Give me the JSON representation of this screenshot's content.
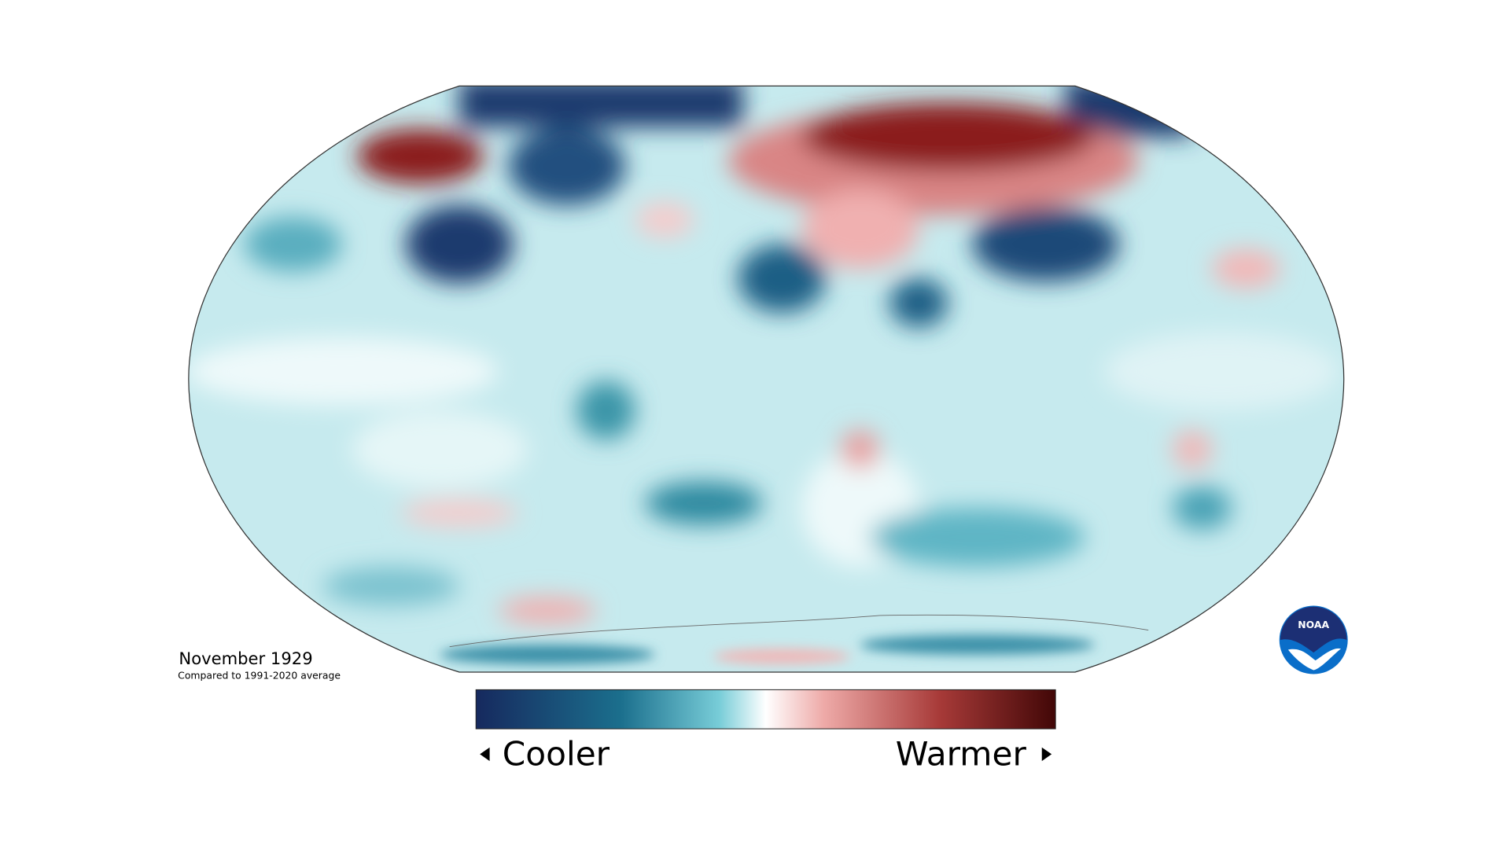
{
  "header": {
    "title": "November 1929",
    "subtitle": "Compared to 1991-2020 average"
  },
  "legend": {
    "low_label": "Cooler",
    "high_label": "Warmer"
  },
  "logo": {
    "text": "NOAA"
  }
}
